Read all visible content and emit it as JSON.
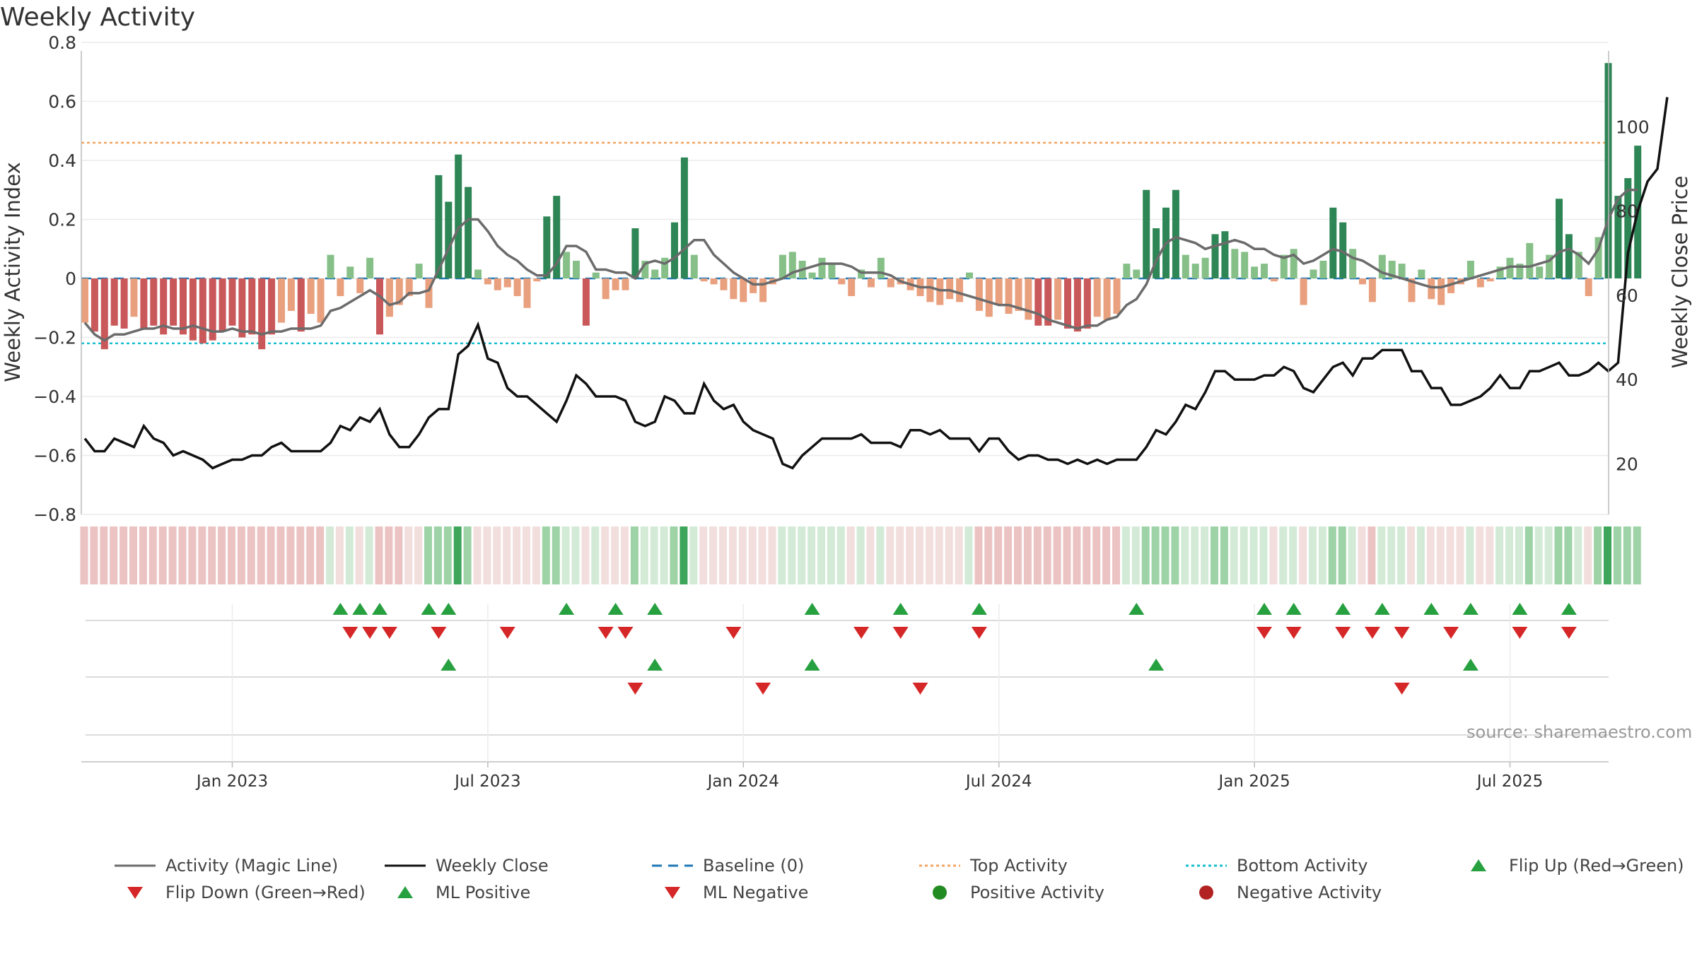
{
  "title": "Weekly Activity",
  "source": "source: sharemaestro.com",
  "colors": {
    "strong_pos": "#2e8555",
    "light_pos": "#86c088",
    "strong_neg": "#c9585a",
    "light_neg": "#e9a07e",
    "magic_line": "#6b6b6b",
    "close_line": "#111111",
    "baseline": "#1f77b4",
    "top": "#f4a460",
    "bottom": "#17becf",
    "up": "#27a040",
    "down": "#d62728"
  },
  "legend": [
    {
      "label": "Activity (Magic Line)",
      "icon": "solid-gray-line-icon"
    },
    {
      "label": "Weekly Close",
      "icon": "solid-black-line-icon"
    },
    {
      "label": "Baseline (0)",
      "icon": "dashed-blue-line-icon"
    },
    {
      "label": "Top Activity",
      "icon": "dotted-orange-line-icon"
    },
    {
      "label": "Bottom Activity",
      "icon": "dotted-cyan-line-icon"
    },
    {
      "label": "Flip Up (Red→Green)",
      "icon": "green-triangle-up-icon"
    },
    {
      "label": "Flip Down (Green→Red)",
      "icon": "red-triangle-down-icon"
    },
    {
      "label": "ML Positive",
      "icon": "green-triangle-up-icon"
    },
    {
      "label": "ML Negative",
      "icon": "red-triangle-down-icon"
    },
    {
      "label": "Positive Activity",
      "icon": "green-dot-icon"
    },
    {
      "label": "Negative Activity",
      "icon": "red-dot-icon"
    }
  ],
  "chart_data": {
    "type": "bar",
    "title": "Weekly Activity",
    "ylabel": "Weekly Activity Index",
    "ylabel_right": "Weekly Close Price",
    "ylim": [
      -0.8,
      0.8
    ],
    "y_ticks": [
      "0.8",
      "0.6",
      "0.4",
      "0.2",
      "0",
      "−0.2",
      "−0.4",
      "−0.6",
      "−0.8"
    ],
    "ylim_right": [
      8,
      120
    ],
    "y_ticks_right": [
      "100",
      "80",
      "60",
      "40",
      "20"
    ],
    "x_ticks": [
      "Jan 2023",
      "Jul 2023",
      "Jan 2024",
      "Jul 2024",
      "Jan 2025",
      "Jul 2025"
    ],
    "x_tick_weeks": [
      15,
      41,
      67,
      93,
      119,
      145
    ],
    "top_activity": 0.46,
    "bottom_activity": -0.22,
    "baseline": 0,
    "activity": [
      -0.15,
      -0.18,
      -0.24,
      -0.16,
      -0.17,
      -0.13,
      -0.17,
      -0.16,
      -0.19,
      -0.16,
      -0.19,
      -0.21,
      -0.22,
      -0.21,
      -0.18,
      -0.16,
      -0.2,
      -0.19,
      -0.24,
      -0.19,
      -0.15,
      -0.11,
      -0.18,
      -0.12,
      -0.15,
      0.08,
      -0.06,
      0.04,
      -0.05,
      0.07,
      -0.19,
      -0.13,
      -0.09,
      -0.06,
      0.05,
      -0.1,
      0.35,
      0.26,
      0.42,
      0.31,
      0.03,
      -0.02,
      -0.04,
      -0.03,
      -0.06,
      -0.1,
      -0.01,
      0.21,
      0.28,
      0.09,
      0.06,
      -0.16,
      0.02,
      -0.07,
      -0.04,
      -0.04,
      0.17,
      0.06,
      0.03,
      0.07,
      0.19,
      0.41,
      0.08,
      -0.01,
      -0.02,
      -0.04,
      -0.07,
      -0.08,
      -0.05,
      -0.08,
      -0.02,
      0.08,
      0.09,
      0.06,
      0.02,
      0.07,
      0.05,
      -0.02,
      -0.06,
      0.03,
      -0.03,
      0.07,
      -0.03,
      -0.02,
      -0.04,
      -0.06,
      -0.08,
      -0.09,
      -0.07,
      -0.08,
      0.02,
      -0.11,
      -0.13,
      -0.09,
      -0.12,
      -0.11,
      -0.14,
      -0.16,
      -0.16,
      -0.14,
      -0.17,
      -0.18,
      -0.17,
      -0.13,
      -0.14,
      -0.12,
      0.05,
      0.03,
      0.3,
      0.17,
      0.24,
      0.3,
      0.08,
      0.05,
      0.07,
      0.15,
      0.16,
      0.1,
      0.09,
      0.04,
      0.05,
      -0.01,
      0.08,
      0.1,
      -0.09,
      0.03,
      0.06,
      0.24,
      0.19,
      0.1,
      -0.02,
      -0.08,
      0.08,
      0.06,
      0.05,
      -0.08,
      0.03,
      -0.07,
      -0.09,
      -0.05,
      -0.02,
      0.06,
      -0.03,
      -0.01,
      0.04,
      0.07,
      0.05,
      0.12,
      0.04,
      0.08,
      0.27,
      0.15,
      0.09,
      -0.06,
      0.14,
      0.73,
      0.28,
      0.34,
      0.45
    ],
    "magic_line": [
      -0.15,
      -0.19,
      -0.21,
      -0.19,
      -0.19,
      -0.18,
      -0.17,
      -0.17,
      -0.16,
      -0.17,
      -0.17,
      -0.16,
      -0.17,
      -0.18,
      -0.18,
      -0.17,
      -0.18,
      -0.18,
      -0.19,
      -0.18,
      -0.18,
      -0.17,
      -0.17,
      -0.17,
      -0.16,
      -0.11,
      -0.1,
      -0.08,
      -0.06,
      -0.04,
      -0.06,
      -0.09,
      -0.08,
      -0.05,
      -0.05,
      -0.04,
      0.03,
      0.1,
      0.17,
      0.2,
      0.2,
      0.16,
      0.11,
      0.08,
      0.06,
      0.03,
      0.01,
      0.01,
      0.05,
      0.11,
      0.11,
      0.09,
      0.03,
      0.03,
      0.02,
      0.02,
      0.0,
      0.05,
      0.06,
      0.05,
      0.07,
      0.1,
      0.13,
      0.13,
      0.08,
      0.05,
      0.02,
      0.0,
      -0.02,
      -0.02,
      -0.01,
      0.0,
      0.02,
      0.03,
      0.04,
      0.05,
      0.05,
      0.05,
      0.04,
      0.02,
      0.02,
      0.02,
      0.01,
      -0.01,
      -0.02,
      -0.03,
      -0.03,
      -0.04,
      -0.04,
      -0.05,
      -0.06,
      -0.07,
      -0.08,
      -0.09,
      -0.09,
      -0.1,
      -0.11,
      -0.12,
      -0.14,
      -0.15,
      -0.16,
      -0.17,
      -0.16,
      -0.16,
      -0.14,
      -0.13,
      -0.09,
      -0.07,
      -0.02,
      0.06,
      0.12,
      0.14,
      0.13,
      0.12,
      0.1,
      0.11,
      0.12,
      0.13,
      0.12,
      0.1,
      0.1,
      0.08,
      0.07,
      0.08,
      0.05,
      0.06,
      0.08,
      0.1,
      0.09,
      0.07,
      0.06,
      0.04,
      0.02,
      0.01,
      0.0,
      -0.01,
      -0.02,
      -0.03,
      -0.03,
      -0.02,
      -0.01,
      0.0,
      0.01,
      0.02,
      0.03,
      0.04,
      0.04,
      0.04,
      0.05,
      0.06,
      0.09,
      0.1,
      0.08,
      0.05,
      0.1,
      0.2,
      0.27,
      0.3,
      0.3
    ],
    "weekly_close": [
      26,
      23,
      23,
      26,
      25,
      24,
      29,
      26,
      25,
      22,
      23,
      22,
      21,
      19,
      20,
      21,
      21,
      22,
      22,
      24,
      25,
      23,
      23,
      23,
      23,
      25,
      29,
      28,
      31,
      30,
      33,
      27,
      24,
      24,
      27,
      31,
      33,
      33,
      46,
      48,
      53,
      45,
      44,
      38,
      36,
      36,
      34,
      32,
      30,
      35,
      41,
      39,
      36,
      36,
      36,
      35,
      30,
      29,
      30,
      36,
      35,
      32,
      32,
      39,
      35,
      33,
      34,
      30,
      28,
      27,
      26,
      20,
      19,
      22,
      24,
      26,
      26,
      26,
      26,
      27,
      25,
      25,
      25,
      24,
      28,
      28,
      27,
      28,
      26,
      26,
      26,
      23,
      26,
      26,
      23,
      21,
      22,
      22,
      21,
      21,
      20,
      21,
      20,
      21,
      20,
      21,
      21,
      21,
      24,
      28,
      27,
      30,
      34,
      33,
      37,
      42,
      42,
      40,
      40,
      40,
      41,
      41,
      43,
      42,
      38,
      37,
      40,
      43,
      44,
      41,
      45,
      45,
      47,
      47,
      47,
      42,
      42,
      38,
      38,
      34,
      34,
      35,
      36,
      38,
      41,
      38,
      38,
      42,
      42,
      43,
      44,
      41,
      41,
      42,
      44,
      42,
      44,
      70,
      80,
      87,
      90,
      107
    ]
  },
  "status_strip": [
    1,
    1,
    1,
    1,
    1,
    1,
    1,
    1,
    1,
    1,
    1,
    1,
    1,
    1,
    1,
    1,
    1,
    1,
    1,
    1,
    1,
    1,
    1,
    1,
    1,
    3,
    2,
    3,
    2,
    3,
    1,
    1,
    1,
    2,
    2,
    4,
    4,
    4,
    5,
    4,
    2,
    2,
    2,
    2,
    2,
    2,
    2,
    4,
    4,
    3,
    3,
    2,
    3,
    2,
    2,
    2,
    4,
    3,
    3,
    3,
    4,
    5,
    3,
    2,
    2,
    2,
    2,
    2,
    2,
    2,
    2,
    3,
    3,
    3,
    3,
    3,
    3,
    3,
    2,
    3,
    2,
    3,
    2,
    2,
    2,
    2,
    2,
    2,
    2,
    2,
    3,
    1,
    1,
    1,
    1,
    1,
    1,
    1,
    1,
    1,
    1,
    1,
    1,
    1,
    1,
    1,
    3,
    3,
    4,
    4,
    4,
    4,
    3,
    3,
    3,
    4,
    4,
    3,
    3,
    3,
    3,
    2,
    3,
    3,
    2,
    3,
    3,
    4,
    4,
    3,
    2,
    1,
    3,
    3,
    3,
    2,
    3,
    2,
    2,
    2,
    2,
    3,
    2,
    2,
    3,
    3,
    3,
    4,
    3,
    3,
    4,
    4,
    3,
    2,
    4,
    5,
    4,
    4,
    4
  ],
  "markers": {
    "flip_up": [
      26,
      28,
      30,
      35,
      37,
      49,
      54,
      58,
      74,
      83,
      91,
      107,
      120,
      123,
      128,
      132,
      137,
      141,
      146,
      151
    ],
    "flip_down": [
      27,
      29,
      31,
      36,
      43,
      53,
      55,
      66,
      79,
      83,
      91,
      120,
      123,
      128,
      131,
      134,
      139,
      146,
      151
    ],
    "ml_positive": [
      37,
      58,
      74,
      109,
      141
    ],
    "ml_negative": [
      56,
      69,
      85,
      134
    ]
  }
}
